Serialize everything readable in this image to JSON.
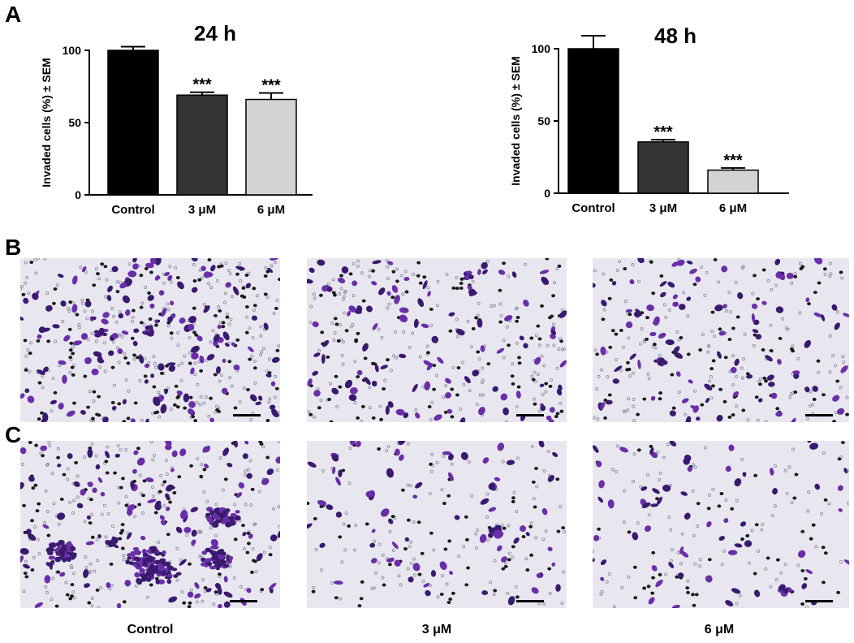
{
  "panels": {
    "a": "A",
    "b": "B",
    "c": "C"
  },
  "chart_data": [
    {
      "type": "bar",
      "title": "24 h",
      "xlabel": "",
      "ylabel": "Invaded cells (%) ± SEM",
      "categories": [
        "Control",
        "3  μM",
        "6  μM"
      ],
      "values": [
        100,
        69,
        66
      ],
      "errors": [
        2.5,
        2,
        4.5
      ],
      "annotations": [
        "",
        "***",
        "***"
      ],
      "colors": [
        "#000000",
        "#333333",
        "#d3d3d3"
      ],
      "ylim": [
        0,
        100
      ],
      "yticks": [
        0,
        50,
        100
      ]
    },
    {
      "type": "bar",
      "title": "48 h",
      "xlabel": "",
      "ylabel": "Invaded cells (%) ± SEM",
      "categories": [
        "Control",
        "3 μM",
        "6 μM"
      ],
      "values": [
        100,
        35.5,
        16
      ],
      "errors": [
        9,
        1.5,
        1.5
      ],
      "annotations": [
        "",
        "***",
        "***"
      ],
      "colors": [
        "#000000",
        "#333333",
        "#d3d3d3"
      ],
      "ylim": [
        0,
        100
      ],
      "yticks": [
        0,
        50,
        100
      ]
    }
  ],
  "micrographs": {
    "row_b": [
      {
        "condition": "Control",
        "density": 260,
        "clusters": 2
      },
      {
        "condition": "3 μM",
        "density": 190,
        "clusters": 1
      },
      {
        "condition": "6 μM",
        "density": 170,
        "clusters": 1
      }
    ],
    "row_c": [
      {
        "condition": "Control",
        "density": 210,
        "clusters": 5
      },
      {
        "condition": "3 μM",
        "density": 130,
        "clusters": 1
      },
      {
        "condition": "6 μM",
        "density": 110,
        "clusters": 1
      }
    ]
  },
  "condition_labels": [
    "Control",
    "3 μM",
    "6 μM"
  ],
  "stain_colors": {
    "cell": "#6a2fa8",
    "cell_dark": "#3a1a6e",
    "pore": "#1a1a1a",
    "background": "#e8e7ef"
  }
}
